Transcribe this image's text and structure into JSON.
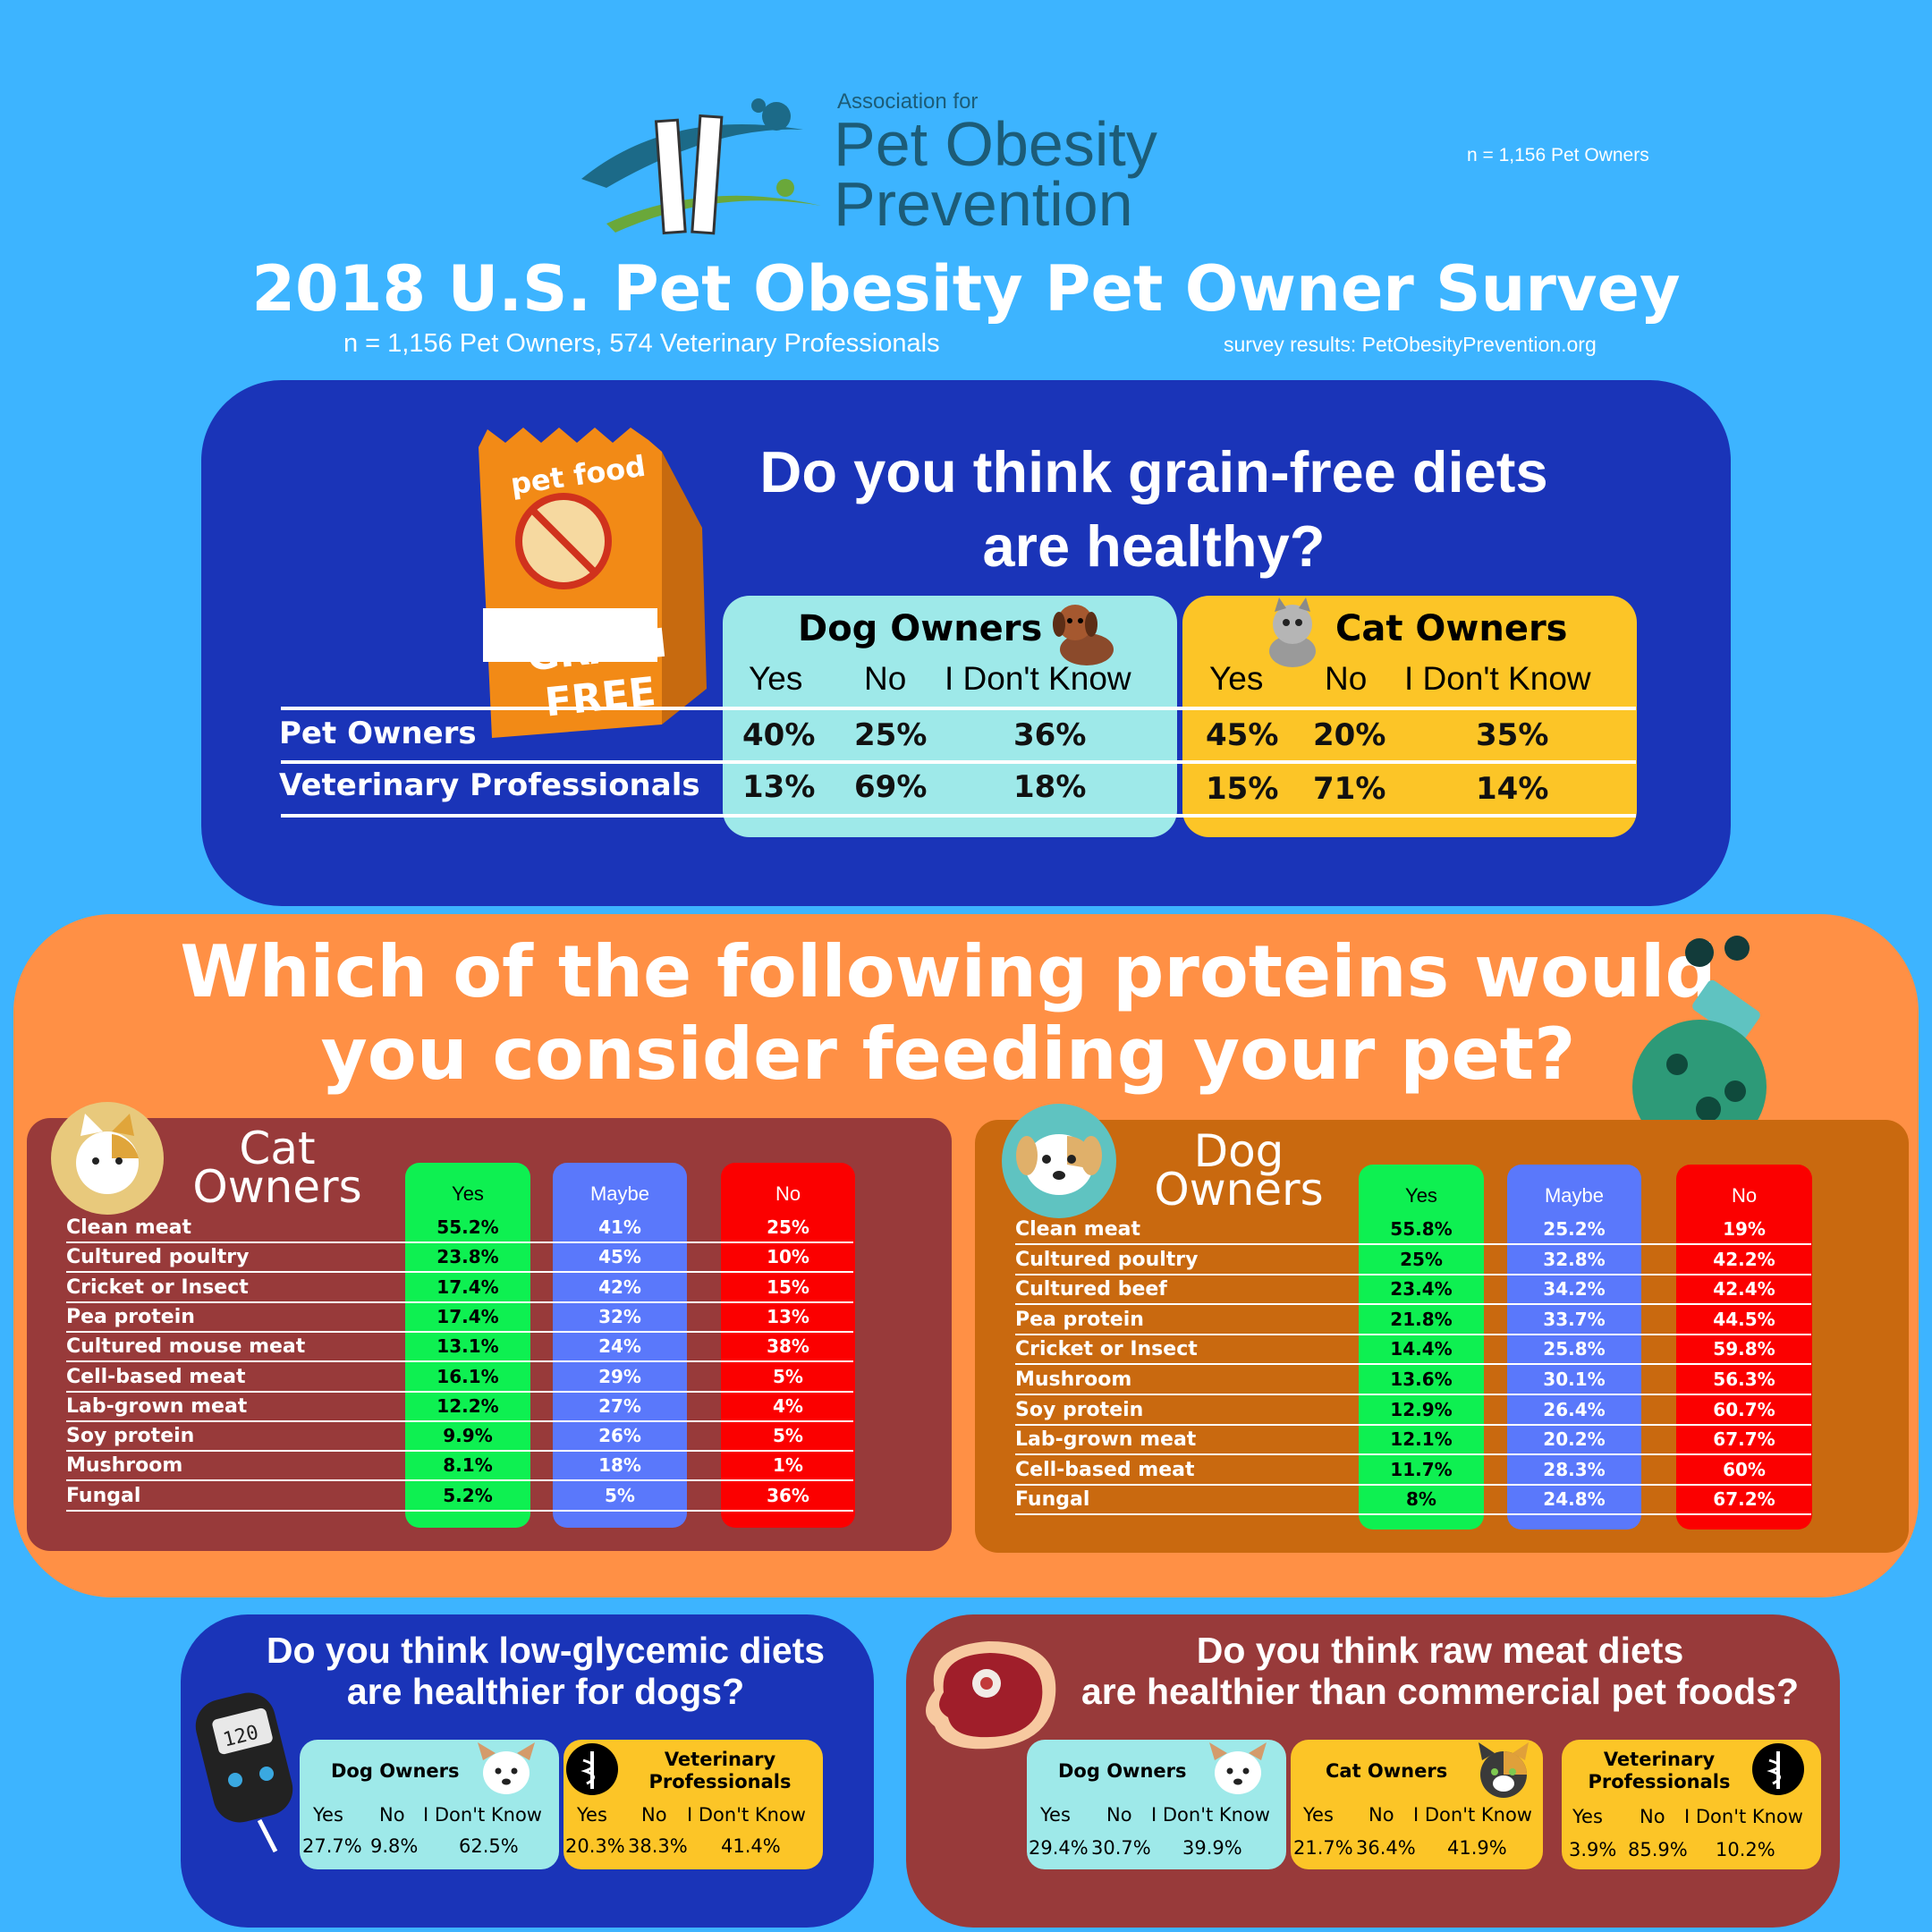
{
  "header": {
    "logo_pre": "Association for",
    "logo_line1": "Pet Obesity",
    "logo_line2": "Prevention",
    "n_top": "n = 1,156 Pet Owners",
    "title": "2018 U.S. Pet Obesity Pet Owner Survey",
    "subtitle": "n = 1,156 Pet Owners, 574 Veterinary Professionals",
    "source": "survey results: PetObesityPrevention.org"
  },
  "grain": {
    "question_l1": "Do you think grain-free diets",
    "question_l2": "are healthy?",
    "bag_top": "pet food",
    "bag_l1": "GRAIN",
    "bag_l2": "FREE",
    "dog_title": "Dog Owners",
    "cat_title": "Cat Owners",
    "yes": "Yes",
    "no": "No",
    "idk": "I Don't Know",
    "row1": "Pet Owners",
    "row2": "Veterinary Professionals",
    "dog_pet": [
      "40%",
      "25%",
      "36%"
    ],
    "dog_vet": [
      "13%",
      "69%",
      "18%"
    ],
    "cat_pet": [
      "45%",
      "20%",
      "35%"
    ],
    "cat_vet": [
      "15%",
      "71%",
      "14%"
    ]
  },
  "proteins": {
    "question_l1": "Which of the following proteins would",
    "question_l2": "you consider feeding your pet?",
    "yes": "Yes",
    "maybe": "Maybe",
    "no": "No",
    "cat": {
      "title_l1": "Cat",
      "title_l2": "Owners",
      "rows": [
        {
          "name": "Clean meat",
          "yes": "55.2%",
          "maybe": "41%",
          "no": "25%"
        },
        {
          "name": "Cultured poultry",
          "yes": "23.8%",
          "maybe": "45%",
          "no": "10%"
        },
        {
          "name": "Cricket or Insect",
          "yes": "17.4%",
          "maybe": "42%",
          "no": "15%"
        },
        {
          "name": "Pea protein",
          "yes": "17.4%",
          "maybe": "32%",
          "no": "13%"
        },
        {
          "name": "Cultured mouse meat",
          "yes": "13.1%",
          "maybe": "24%",
          "no": "38%"
        },
        {
          "name": "Cell-based meat",
          "yes": "16.1%",
          "maybe": "29%",
          "no": "5%"
        },
        {
          "name": "Lab-grown meat",
          "yes": "12.2%",
          "maybe": "27%",
          "no": "4%"
        },
        {
          "name": "Soy protein",
          "yes": "9.9%",
          "maybe": "26%",
          "no": "5%"
        },
        {
          "name": "Mushroom",
          "yes": "8.1%",
          "maybe": "18%",
          "no": "1%"
        },
        {
          "name": "Fungal",
          "yes": "5.2%",
          "maybe": "5%",
          "no": "36%"
        }
      ]
    },
    "dog": {
      "title_l1": "Dog",
      "title_l2": "Owners",
      "rows": [
        {
          "name": "Clean meat",
          "yes": "55.8%",
          "maybe": "25.2%",
          "no": "19%"
        },
        {
          "name": "Cultured poultry",
          "yes": "25%",
          "maybe": "32.8%",
          "no": "42.2%"
        },
        {
          "name": "Cultured beef",
          "yes": "23.4%",
          "maybe": "34.2%",
          "no": "42.4%"
        },
        {
          "name": "Pea protein",
          "yes": "21.8%",
          "maybe": "33.7%",
          "no": "44.5%"
        },
        {
          "name": "Cricket or Insect",
          "yes": "14.4%",
          "maybe": "25.8%",
          "no": "59.8%"
        },
        {
          "name": "Mushroom",
          "yes": "13.6%",
          "maybe": "30.1%",
          "no": "56.3%"
        },
        {
          "name": "Soy protein",
          "yes": "12.9%",
          "maybe": "26.4%",
          "no": "60.7%"
        },
        {
          "name": "Lab-grown meat",
          "yes": "12.1%",
          "maybe": "20.2%",
          "no": "67.7%"
        },
        {
          "name": "Cell-based meat",
          "yes": "11.7%",
          "maybe": "28.3%",
          "no": "60%"
        },
        {
          "name": "Fungal",
          "yes": "8%",
          "maybe": "24.8%",
          "no": "67.2%"
        }
      ]
    }
  },
  "glycemic": {
    "question_l1": "Do you think low-glycemic diets",
    "question_l2": "are healthier for dogs?",
    "meter": "120",
    "dog_title": "Dog Owners",
    "vet_title_l1": "Veterinary",
    "vet_title_l2": "Professionals",
    "yes": "Yes",
    "no": "No",
    "idk": "I Don't Know",
    "dog_vals": [
      "27.7%",
      "9.8%",
      "62.5%"
    ],
    "vet_vals": [
      "20.3%",
      "38.3%",
      "41.4%"
    ]
  },
  "raw": {
    "question_l1": "Do you think raw meat diets",
    "question_l2": "are healthier than commercial pet foods?",
    "dog_title": "Dog Owners",
    "cat_title": "Cat Owners",
    "vet_title_l1": "Veterinary",
    "vet_title_l2": "Professionals",
    "yes": "Yes",
    "no": "No",
    "idk": "I Don't Know",
    "dog_vals": [
      "29.4%",
      "30.7%",
      "39.9%"
    ],
    "cat_vals": [
      "21.7%",
      "36.4%",
      "41.9%"
    ],
    "vet_vals": [
      "3.9%",
      "85.9%",
      "10.2%"
    ]
  },
  "colors": {
    "background": "#3db4ff",
    "navy": "#1a34b8",
    "orange": "#ff9045",
    "maroon": "#983a3a",
    "rust": "#c9690f",
    "cyan": "#9ee9e9",
    "yellow": "#fcc527",
    "green": "#0ef051",
    "blue": "#5a78fb",
    "red": "#fb0000"
  }
}
